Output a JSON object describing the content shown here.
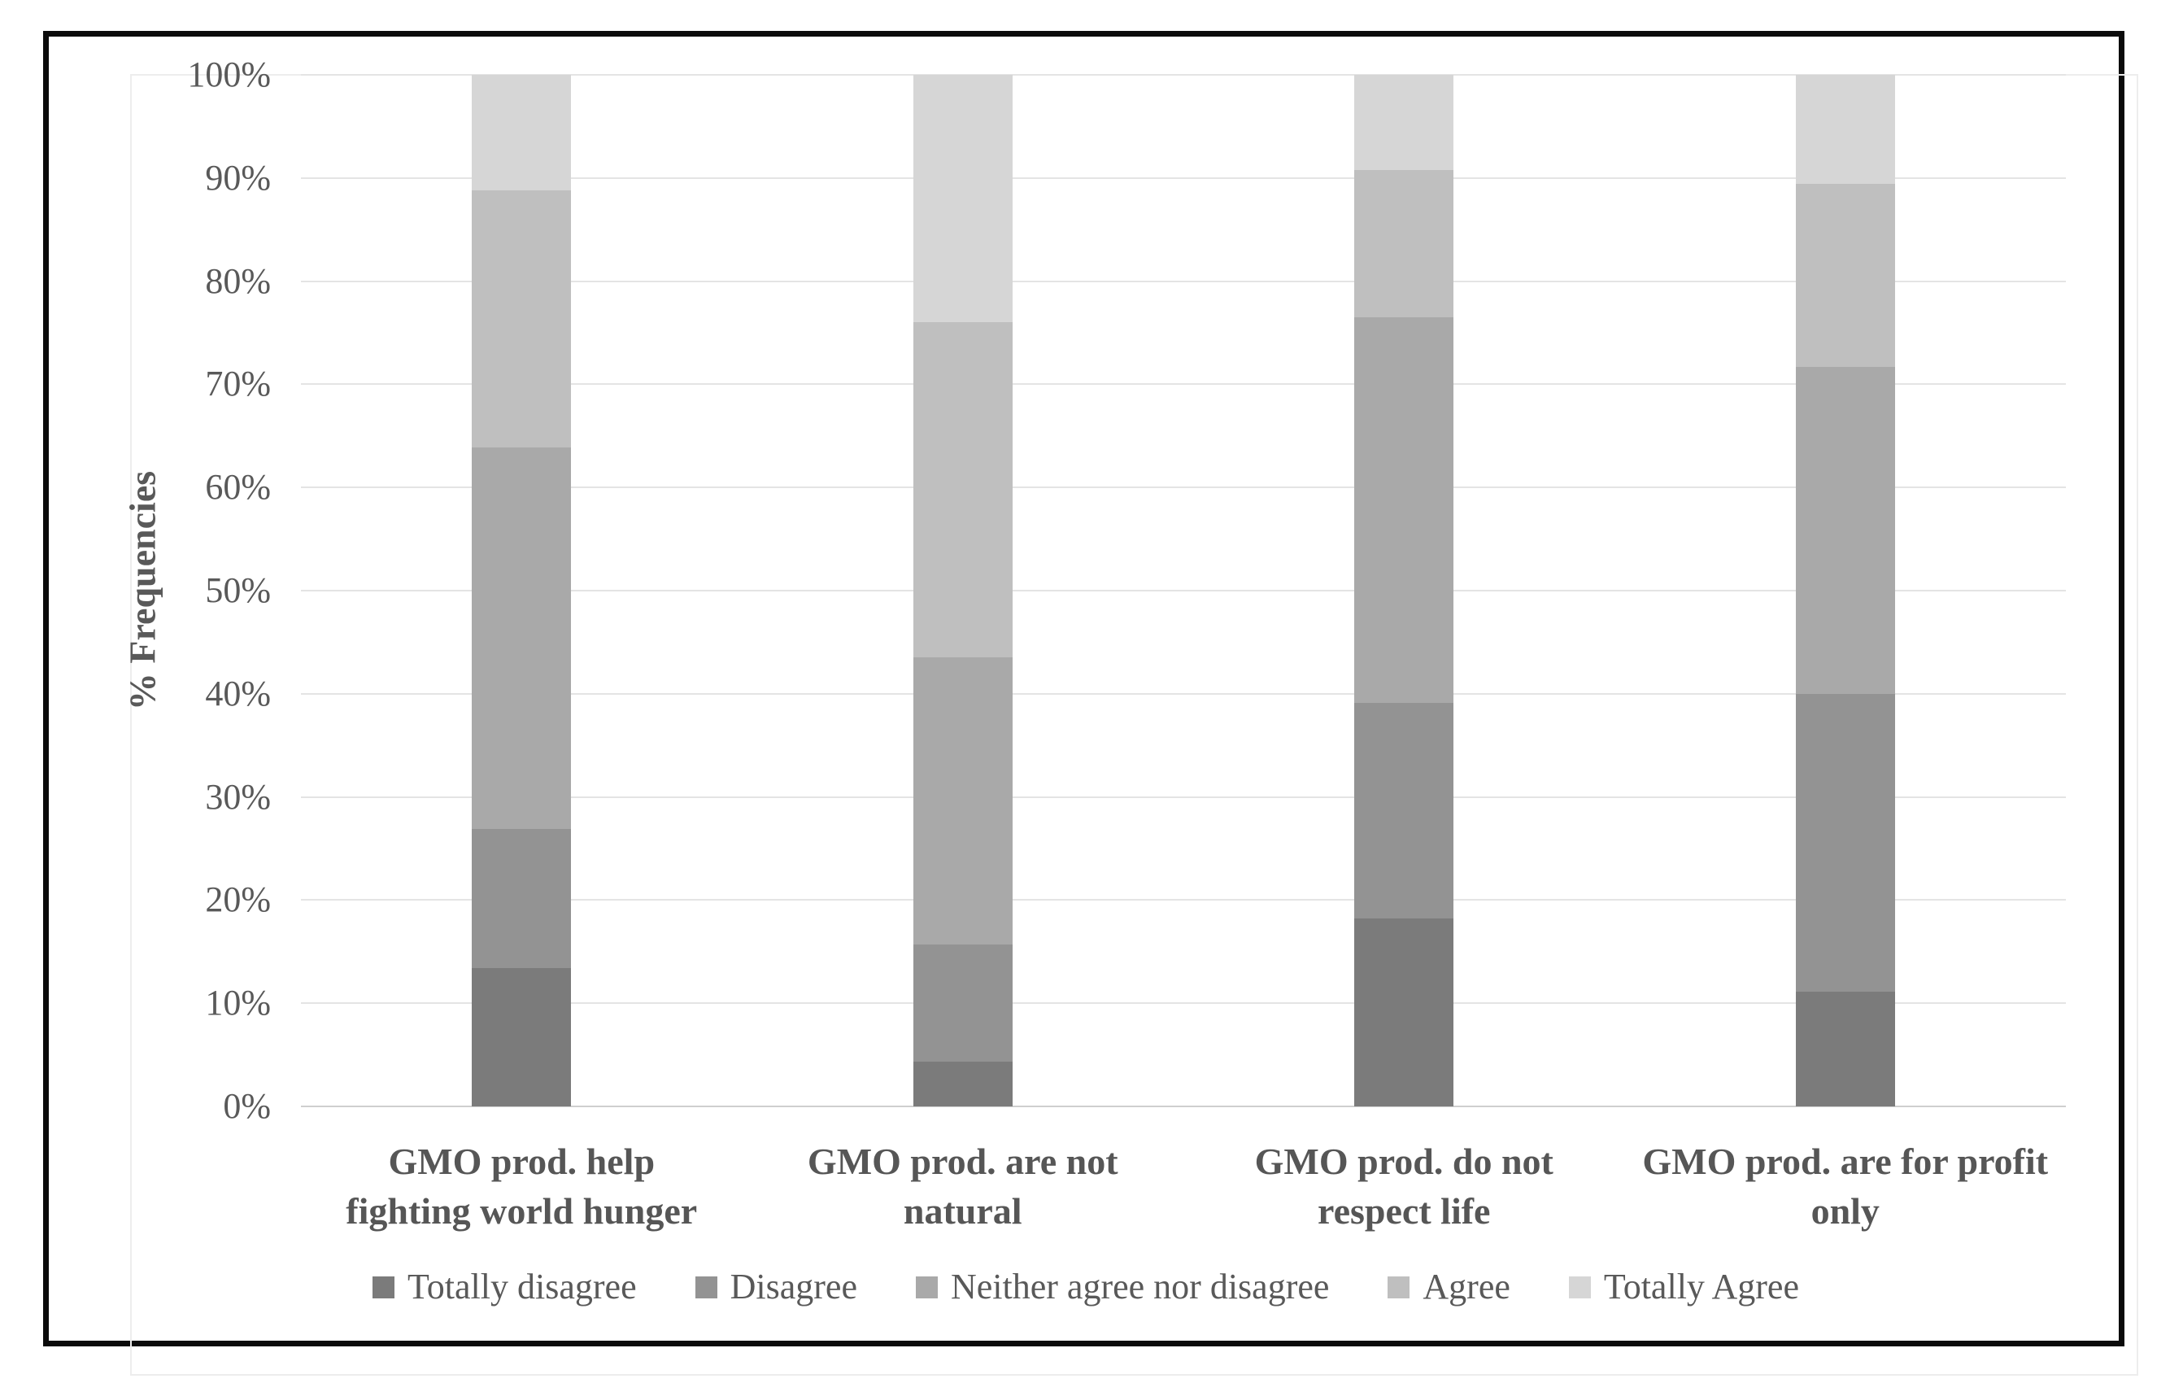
{
  "figure": {
    "y_axis_title": "% Frequencies"
  },
  "chart_data": {
    "type": "bar",
    "stacked": true,
    "orientation": "vertical",
    "title": "",
    "xlabel": "",
    "ylabel": "% Frequencies",
    "ylim": [
      0,
      100
    ],
    "y_ticks": [
      "0%",
      "10%",
      "20%",
      "30%",
      "40%",
      "50%",
      "60%",
      "70%",
      "80%",
      "90%",
      "100%"
    ],
    "grid": true,
    "legend_position": "bottom",
    "categories": [
      "GMO prod. help fighting world hunger",
      "GMO prod. are not natural",
      "GMO prod. do not respect life",
      "GMO prod. are for profit only"
    ],
    "categories_wrapped": [
      [
        "GMO prod. help",
        "fighting world hunger"
      ],
      [
        "GMO prod. are not",
        "natural"
      ],
      [
        "GMO prod. do not",
        "respect life"
      ],
      [
        "GMO prod. are for profit",
        "only"
      ]
    ],
    "series": [
      {
        "name": "Totally disagree",
        "color": "#7b7b7b",
        "values": [
          13.4,
          4.3,
          18.2,
          11.1
        ]
      },
      {
        "name": "Disagree",
        "color": "#939393",
        "values": [
          13.5,
          11.4,
          20.9,
          28.9
        ]
      },
      {
        "name": "Neither agree nor disagree",
        "color": "#a9a9a9",
        "values": [
          37.0,
          27.8,
          37.4,
          31.7
        ]
      },
      {
        "name": "Agree",
        "color": "#bfbfbf",
        "values": [
          24.9,
          32.5,
          14.3,
          17.7
        ]
      },
      {
        "name": "Totally Agree",
        "color": "#d6d6d6",
        "values": [
          11.2,
          24.0,
          9.2,
          10.6
        ]
      }
    ],
    "colors": {
      "gridline": "#e4e4e4",
      "axis_line": "#cfcfcf",
      "text": "#595959",
      "frame_border": "#0b0b0b",
      "chart_border": "#ededed"
    }
  }
}
